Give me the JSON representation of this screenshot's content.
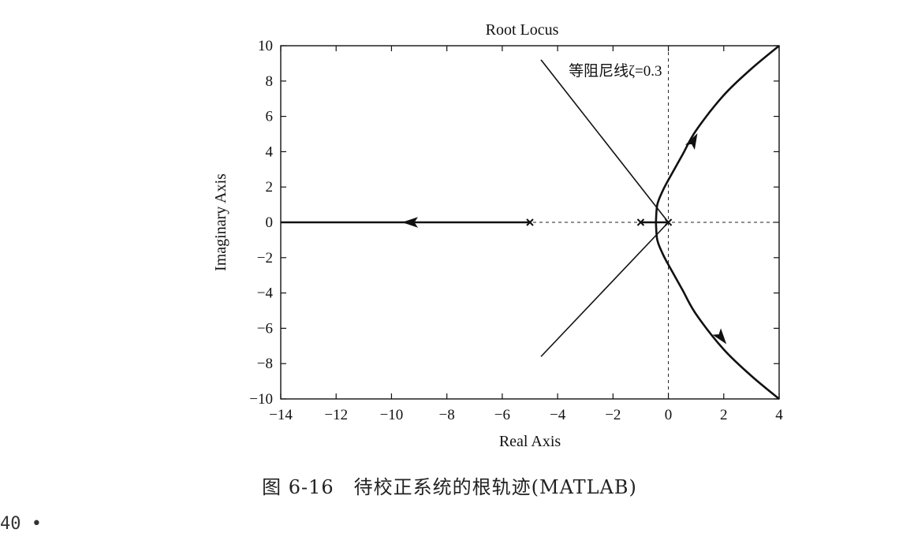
{
  "caption": "图 6-16　待校正系统的根轨迹(MATLAB)",
  "page_number": "40 •",
  "chart_data": {
    "type": "line",
    "title": "Root Locus",
    "xlabel": "Real Axis",
    "ylabel": "Imaginary Axis",
    "xlim": [
      -14,
      4
    ],
    "ylim": [
      -10,
      10
    ],
    "xticks": [
      -14,
      -12,
      -10,
      -8,
      -6,
      -4,
      -2,
      0,
      2,
      4
    ],
    "yticks": [
      -10,
      -8,
      -6,
      -4,
      -2,
      0,
      2,
      4,
      6,
      8,
      10
    ],
    "grid": false,
    "poles": [
      [
        0,
        0
      ],
      [
        -1,
        0
      ],
      [
        -5,
        0
      ]
    ],
    "series": [
      {
        "role": "locus-real-left",
        "x": [
          -5,
          -14
        ],
        "y": [
          0,
          0
        ]
      },
      {
        "role": "locus-real-segment",
        "x": [
          -1,
          0
        ],
        "y": [
          0,
          0
        ]
      },
      {
        "role": "locus-upper",
        "x": [
          -0.45,
          -0.4,
          -0.2,
          0,
          0.5,
          1,
          2,
          3,
          4
        ],
        "y": [
          0,
          1,
          1.8,
          2.4,
          3.8,
          5.2,
          7.2,
          8.7,
          10
        ]
      },
      {
        "role": "locus-lower",
        "x": [
          -0.45,
          -0.4,
          -0.2,
          0,
          0.5,
          1,
          2,
          3,
          4
        ],
        "y": [
          0,
          -1,
          -1.8,
          -2.4,
          -3.8,
          -5.2,
          -7.2,
          -8.7,
          -10
        ]
      },
      {
        "role": "damping-line-upper",
        "x": [
          0,
          -4.6
        ],
        "y": [
          0,
          9.2
        ]
      },
      {
        "role": "damping-line-lower",
        "x": [
          0,
          -4.6
        ],
        "y": [
          0,
          -7.6
        ]
      }
    ],
    "arrows": [
      {
        "x": -9.3,
        "y": 0,
        "dir": "left"
      },
      {
        "x": 0.9,
        "y": 4.6,
        "dir": "up-right"
      },
      {
        "x": 1.9,
        "y": -6.5,
        "dir": "down-right"
      }
    ],
    "annotations": [
      {
        "text": "等阻尼线ζ=0.3",
        "x": -3.6,
        "y": 8.3
      }
    ],
    "reference_lines": {
      "x_zero": true,
      "y_zero": true,
      "style": "dashed"
    }
  }
}
